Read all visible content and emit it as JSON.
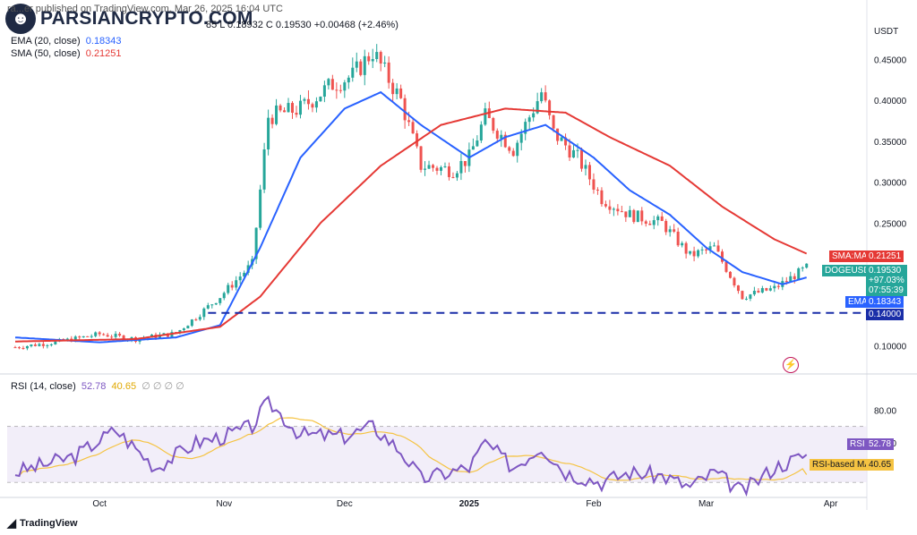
{
  "header": {
    "published": "ra...er published on TradingView.com, Mar 26, 2025 16:04 UTC",
    "ohlc_tail": "85  L 0.18932  C 0.19530  +0.00468 (+2.46%)",
    "ema_label": "EMA (20, close)",
    "ema_value": "0.18343",
    "sma_label": "SMA (50, close)",
    "sma_value": "0.21251",
    "rsi_label": "RSI (14, close)",
    "rsi_value": "52.78",
    "rsi_ma_value": "40.65",
    "rsi_extra": "∅ ∅ ∅ ∅"
  },
  "logo": {
    "text": "PARSIANCRYPTO.COM",
    "icon": "person-icon"
  },
  "footer": {
    "brand": "TradingView",
    "icon": "tradingview-icon"
  },
  "price_axis": {
    "currency": "USDT",
    "ticks": [
      "0.45000",
      "0.40000",
      "0.35000",
      "0.30000",
      "0.25000",
      "0.10000"
    ]
  },
  "rsi_axis": {
    "ticks": [
      "80.00",
      "60.00"
    ]
  },
  "price_tags": {
    "sma_tag": "SMA:MA",
    "sma_val": "0.21251",
    "symbol": "DOGEUSDT",
    "price": "0.19530",
    "change": "+97.03%",
    "countdown": "07:55:39",
    "ema_tag": "EMA",
    "ema_val": "0.18343",
    "support": "0.14000",
    "rsi_tag": "RSI",
    "rsi_val": "52.78",
    "rsima_tag": "RSI-based MA",
    "rsima_val": "40.65"
  },
  "colors": {
    "up": "#26a69a",
    "down": "#ef5350",
    "ema": "#2962ff",
    "sma": "#e53935",
    "rsi": "#7e57c2",
    "rsi_ma": "#f5c342",
    "support": "#1a2ea8"
  },
  "chart_data": {
    "type": "candlestick",
    "symbol": "DOGEUSDT",
    "x_labels": [
      "Oct",
      "Nov",
      "Dec",
      "2025",
      "Feb",
      "Mar",
      "Apr"
    ],
    "y_unit": "USDT",
    "ylim": [
      0.085,
      0.49
    ],
    "support_level": 0.14,
    "close_path": [
      [
        "Sep 10",
        0.098
      ],
      [
        "Sep 20",
        0.104
      ],
      [
        "Oct 1",
        0.114
      ],
      [
        "Oct 10",
        0.108
      ],
      [
        "Oct 20",
        0.115
      ],
      [
        "Oct 25",
        0.135
      ],
      [
        "Oct 31",
        0.16
      ],
      [
        "Nov 8",
        0.2
      ],
      [
        "Nov 12",
        0.38
      ],
      [
        "Nov 20",
        0.39
      ],
      [
        "Nov 28",
        0.42
      ],
      [
        "Dec 3",
        0.43
      ],
      [
        "Dec 8",
        0.46
      ],
      [
        "Dec 15",
        0.4
      ],
      [
        "Dec 20",
        0.32
      ],
      [
        "Dec 28",
        0.315
      ],
      [
        "Jan 1",
        0.33
      ],
      [
        "Jan 5",
        0.38
      ],
      [
        "Jan 12",
        0.34
      ],
      [
        "Jan 19",
        0.41
      ],
      [
        "Jan 22",
        0.36
      ],
      [
        "Jan 28",
        0.33
      ],
      [
        "Feb 3",
        0.28
      ],
      [
        "Feb 10",
        0.26
      ],
      [
        "Feb 18",
        0.25
      ],
      [
        "Feb 25",
        0.21
      ],
      [
        "Mar 3",
        0.22
      ],
      [
        "Mar 10",
        0.16
      ],
      [
        "Mar 18",
        0.17
      ],
      [
        "Mar 26",
        0.1953
      ]
    ],
    "ema20_path": [
      [
        "Sep 10",
        0.11
      ],
      [
        "Oct 1",
        0.104
      ],
      [
        "Oct 20",
        0.11
      ],
      [
        "Oct 31",
        0.125
      ],
      [
        "Nov 10",
        0.22
      ],
      [
        "Nov 20",
        0.33
      ],
      [
        "Dec 1",
        0.39
      ],
      [
        "Dec 10",
        0.41
      ],
      [
        "Dec 20",
        0.37
      ],
      [
        "Jan 1",
        0.33
      ],
      [
        "Jan 10",
        0.355
      ],
      [
        "Jan 20",
        0.37
      ],
      [
        "Feb 1",
        0.33
      ],
      [
        "Feb 10",
        0.29
      ],
      [
        "Feb 20",
        0.26
      ],
      [
        "Mar 1",
        0.22
      ],
      [
        "Mar 10",
        0.19
      ],
      [
        "Mar 20",
        0.175
      ],
      [
        "Mar 26",
        0.18343
      ]
    ],
    "sma50_path": [
      [
        "Sep 10",
        0.105
      ],
      [
        "Oct 10",
        0.108
      ],
      [
        "Oct 31",
        0.123
      ],
      [
        "Nov 10",
        0.16
      ],
      [
        "Nov 25",
        0.25
      ],
      [
        "Dec 10",
        0.32
      ],
      [
        "Dec 25",
        0.37
      ],
      [
        "Jan 10",
        0.39
      ],
      [
        "Jan 25",
        0.385
      ],
      [
        "Feb 5",
        0.355
      ],
      [
        "Feb 20",
        0.32
      ],
      [
        "Mar 5",
        0.27
      ],
      [
        "Mar 18",
        0.23
      ],
      [
        "Mar 26",
        0.21251
      ]
    ],
    "rsi": {
      "name": "RSI (14, close)",
      "levels": [
        70,
        30
      ],
      "last": 52.78,
      "ma_last": 40.65,
      "path": [
        [
          "Sep 10",
          42
        ],
        [
          "Sep 25",
          52
        ],
        [
          "Oct 5",
          68
        ],
        [
          "Oct 15",
          45
        ],
        [
          "Oct 25",
          60
        ],
        [
          "Nov 1",
          64
        ],
        [
          "Nov 8",
          70
        ],
        [
          "Nov 12",
          85
        ],
        [
          "Nov 20",
          65
        ],
        [
          "Dec 1",
          64
        ],
        [
          "Dec 8",
          70
        ],
        [
          "Dec 15",
          55
        ],
        [
          "Dec 20",
          38
        ],
        [
          "Jan 1",
          45
        ],
        [
          "Jan 5",
          60
        ],
        [
          "Jan 12",
          45
        ],
        [
          "Jan 19",
          58
        ],
        [
          "Jan 25",
          42
        ],
        [
          "Feb 3",
          36
        ],
        [
          "Feb 10",
          42
        ],
        [
          "Feb 18",
          40
        ],
        [
          "Feb 25",
          33
        ],
        [
          "Mar 3",
          42
        ],
        [
          "Mar 10",
          30
        ],
        [
          "Mar 18",
          45
        ],
        [
          "Mar 26",
          52.78
        ]
      ]
    }
  }
}
